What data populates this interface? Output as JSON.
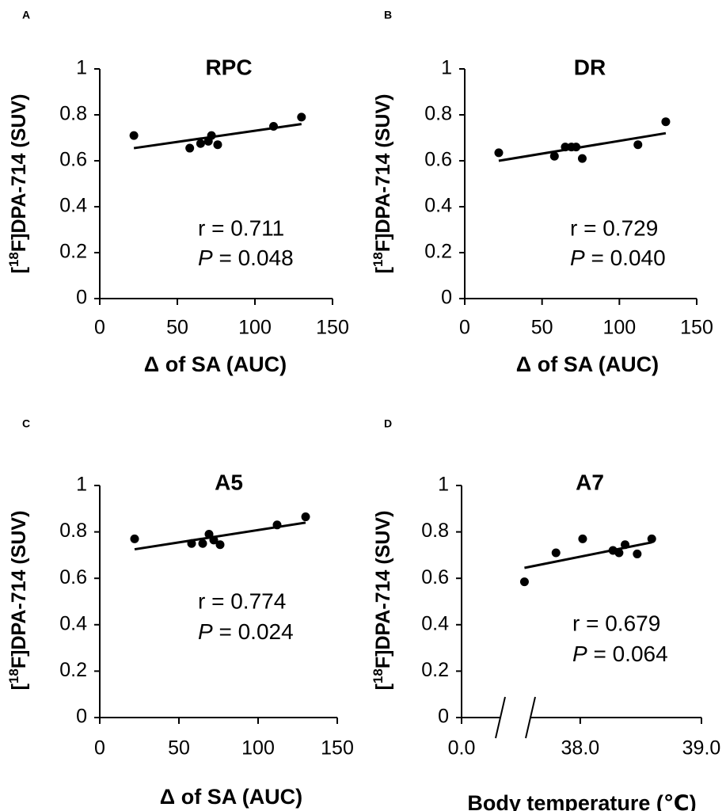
{
  "chart_data": [
    {
      "panel": "A",
      "type": "scatter",
      "title": "RPC",
      "xlabel": "Δ of SA (AUC)",
      "ylabel": "[18F]DPA-714 (SUV)",
      "xlim": [
        0,
        150
      ],
      "ylim": [
        0,
        1
      ],
      "xticks": [
        "0",
        "50",
        "100",
        "150"
      ],
      "yticks": [
        "0",
        "0.2",
        "0.4",
        "0.6",
        "0.8",
        "1"
      ],
      "points": [
        [
          22,
          0.71
        ],
        [
          58,
          0.655
        ],
        [
          65,
          0.675
        ],
        [
          70,
          0.685
        ],
        [
          72,
          0.71
        ],
        [
          76,
          0.67
        ],
        [
          112,
          0.75
        ],
        [
          130,
          0.79
        ]
      ],
      "fit_line": [
        [
          22,
          0.655
        ],
        [
          130,
          0.76
        ]
      ],
      "stats": {
        "r": "r = 0.711",
        "p_symbol": "P",
        "p_value": " = 0.048"
      }
    },
    {
      "panel": "B",
      "type": "scatter",
      "title": "DR",
      "xlabel": "Δ of SA (AUC)",
      "ylabel": "[18F]DPA-714 (SUV)",
      "xlim": [
        0,
        150
      ],
      "ylim": [
        0,
        1
      ],
      "xticks": [
        "0",
        "50",
        "100",
        "150"
      ],
      "yticks": [
        "0",
        "0.2",
        "0.4",
        "0.6",
        "0.8",
        "1"
      ],
      "points": [
        [
          22,
          0.635
        ],
        [
          58,
          0.62
        ],
        [
          65,
          0.66
        ],
        [
          69,
          0.66
        ],
        [
          72,
          0.66
        ],
        [
          76,
          0.61
        ],
        [
          112,
          0.67
        ],
        [
          130,
          0.77
        ]
      ],
      "fit_line": [
        [
          22,
          0.6
        ],
        [
          130,
          0.72
        ]
      ],
      "stats": {
        "r": "r = 0.729",
        "p_symbol": "P",
        "p_value": " = 0.040"
      }
    },
    {
      "panel": "C",
      "type": "scatter",
      "title": "A5",
      "xlabel": "Δ of SA (AUC)",
      "ylabel": "[18F]DPA-714 (SUV)",
      "xlim": [
        0,
        150
      ],
      "ylim": [
        0,
        1
      ],
      "xticks": [
        "0",
        "50",
        "100",
        "150"
      ],
      "yticks": [
        "0",
        "0.2",
        "0.4",
        "0.6",
        "0.8",
        "1"
      ],
      "points": [
        [
          22,
          0.77
        ],
        [
          58,
          0.75
        ],
        [
          65,
          0.75
        ],
        [
          69,
          0.79
        ],
        [
          72,
          0.765
        ],
        [
          76,
          0.745
        ],
        [
          112,
          0.83
        ],
        [
          130,
          0.865
        ]
      ],
      "fit_line": [
        [
          22,
          0.725
        ],
        [
          130,
          0.84
        ]
      ],
      "stats": {
        "r": "r = 0.774",
        "p_symbol": "P",
        "p_value": " = 0.024"
      }
    },
    {
      "panel": "D",
      "type": "scatter",
      "title": "A7",
      "xlabel": "Body temperature (℃)",
      "ylabel": "[18F]DPA-714 (SUV)",
      "xlim": [
        37.4,
        39.0
      ],
      "ylim": [
        0,
        1
      ],
      "xaxis_break": true,
      "xticks": [
        "0.0",
        "38.0",
        "39.0"
      ],
      "yticks": [
        "0",
        "0.2",
        "0.4",
        "0.6",
        "0.8",
        "1"
      ],
      "points": [
        [
          37.54,
          0.585
        ],
        [
          37.8,
          0.71
        ],
        [
          38.02,
          0.77
        ],
        [
          38.27,
          0.72
        ],
        [
          38.32,
          0.71
        ],
        [
          38.37,
          0.745
        ],
        [
          38.47,
          0.705
        ],
        [
          38.59,
          0.77
        ]
      ],
      "fit_line": [
        [
          37.54,
          0.645
        ],
        [
          38.59,
          0.755
        ]
      ],
      "stats": {
        "r": "r = 0.679",
        "p_symbol": "P",
        "p_value": " = 0.064"
      }
    }
  ]
}
